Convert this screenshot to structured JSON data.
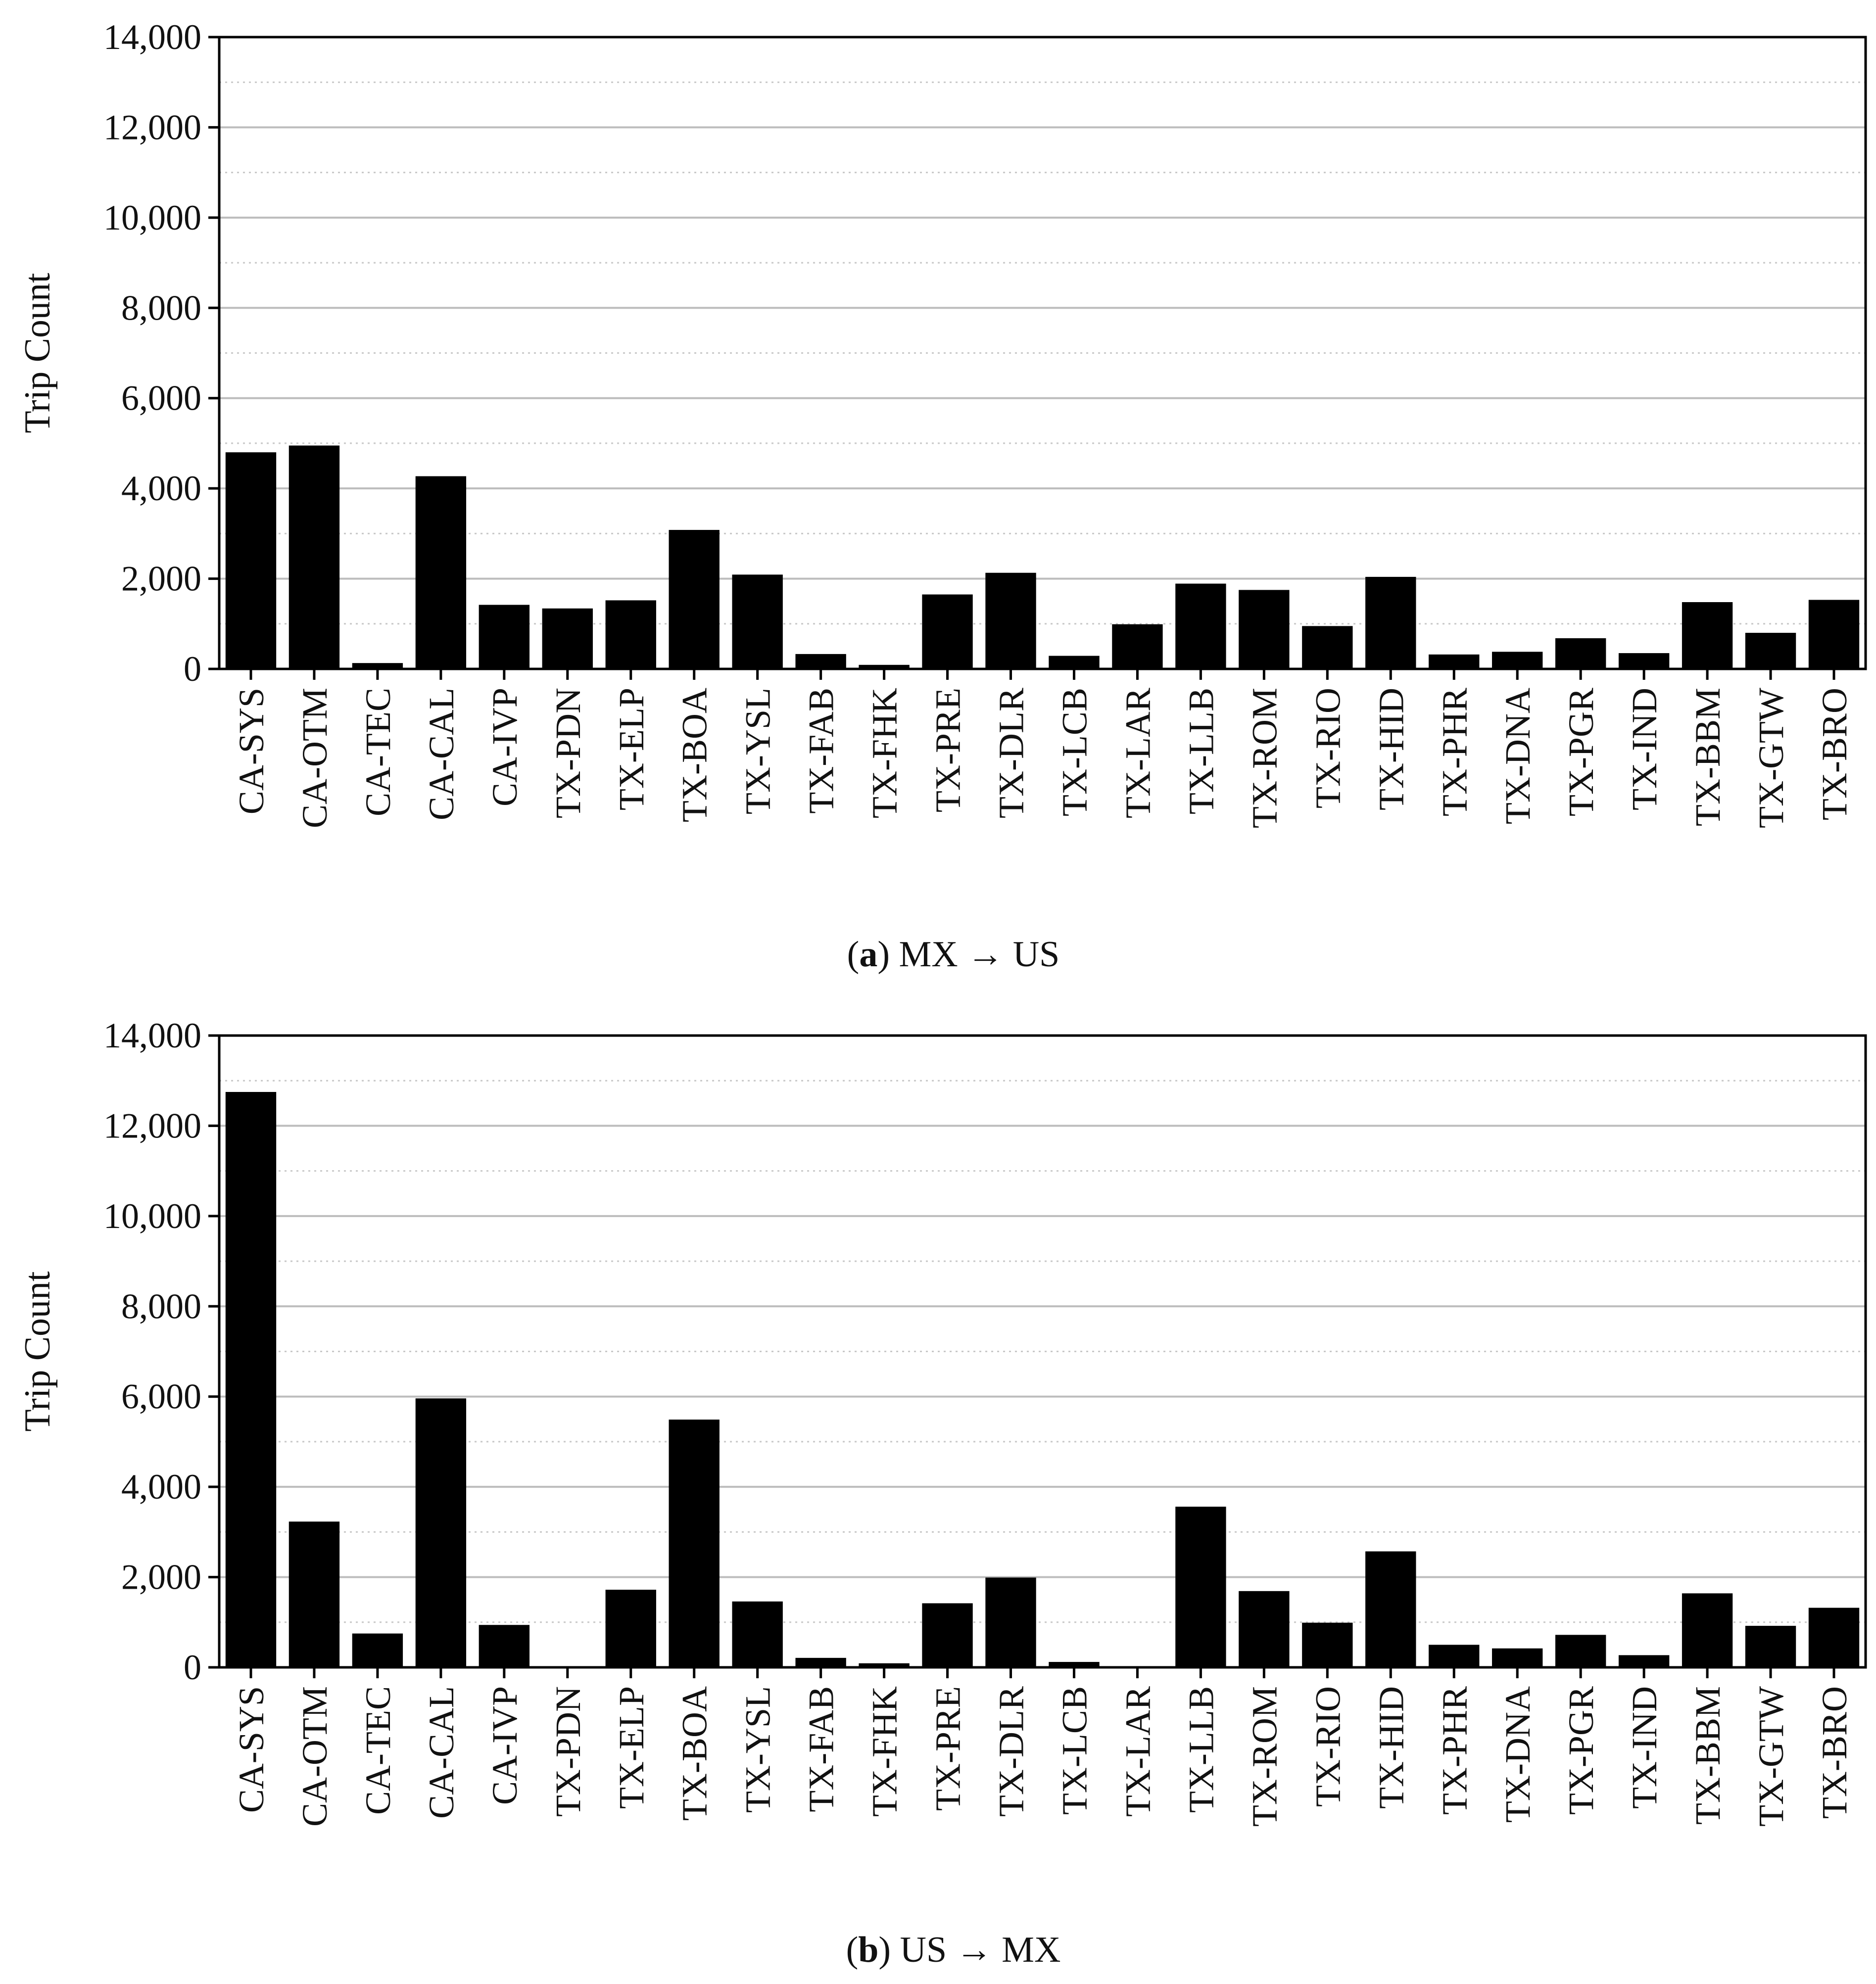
{
  "chart_data": [
    {
      "type": "bar",
      "caption_letter": "a",
      "caption_text": "MX → US",
      "ylabel": "Trip Count",
      "ylim": [
        0,
        14000
      ],
      "yticks": [
        0,
        2000,
        4000,
        6000,
        8000,
        10000,
        12000,
        14000
      ],
      "ytick_labels": [
        "0",
        "2,000",
        "4,000",
        "6,000",
        "8,000",
        "10,000",
        "12,000",
        "14,000"
      ],
      "grid": "horizontal major solid, minor dotted",
      "bar_color": "#000000",
      "categories": [
        "CA-SYS",
        "CA-OTM",
        "CA-TEC",
        "CA-CAL",
        "CA-IVP",
        "TX-PDN",
        "TX-ELP",
        "TX-BOA",
        "TX-YSL",
        "TX-FAB",
        "TX-FHK",
        "TX-PRE",
        "TX-DLR",
        "TX-LCB",
        "TX-LAR",
        "TX-LLB",
        "TX-ROM",
        "TX-RIO",
        "TX-HID",
        "TX-PHR",
        "TX-DNA",
        "TX-PGR",
        "TX-IND",
        "TX-BBM",
        "TX-GTW",
        "TX-BRO"
      ],
      "values": [
        4800,
        4950,
        130,
        4270,
        1420,
        1340,
        1520,
        3080,
        2090,
        330,
        90,
        1650,
        2130,
        290,
        990,
        1890,
        1750,
        950,
        2040,
        320,
        380,
        680,
        350,
        1480,
        800,
        1530
      ]
    },
    {
      "type": "bar",
      "caption_letter": "b",
      "caption_text": "US → MX",
      "ylabel": "Trip Count",
      "ylim": [
        0,
        14000
      ],
      "yticks": [
        0,
        2000,
        4000,
        6000,
        8000,
        10000,
        12000,
        14000
      ],
      "ytick_labels": [
        "0",
        "2,000",
        "4,000",
        "6,000",
        "8,000",
        "10,000",
        "12,000",
        "14,000"
      ],
      "grid": "horizontal major solid, minor dotted",
      "bar_color": "#000000",
      "categories": [
        "CA-SYS",
        "CA-OTM",
        "CA-TEC",
        "CA-CAL",
        "CA-IVP",
        "TX-PDN",
        "TX-ELP",
        "TX-BOA",
        "TX-YSL",
        "TX-FAB",
        "TX-FHK",
        "TX-PRE",
        "TX-DLR",
        "TX-LCB",
        "TX-LAR",
        "TX-LLB",
        "TX-ROM",
        "TX-RIO",
        "TX-HID",
        "TX-PHR",
        "TX-DNA",
        "TX-PGR",
        "TX-IND",
        "TX-BBM",
        "TX-GTW",
        "TX-BRO"
      ],
      "values": [
        12750,
        3230,
        750,
        5960,
        940,
        0,
        1720,
        5490,
        1460,
        210,
        90,
        1420,
        1990,
        120,
        0,
        3560,
        1690,
        990,
        2570,
        500,
        420,
        720,
        270,
        1640,
        920,
        1320
      ]
    }
  ]
}
